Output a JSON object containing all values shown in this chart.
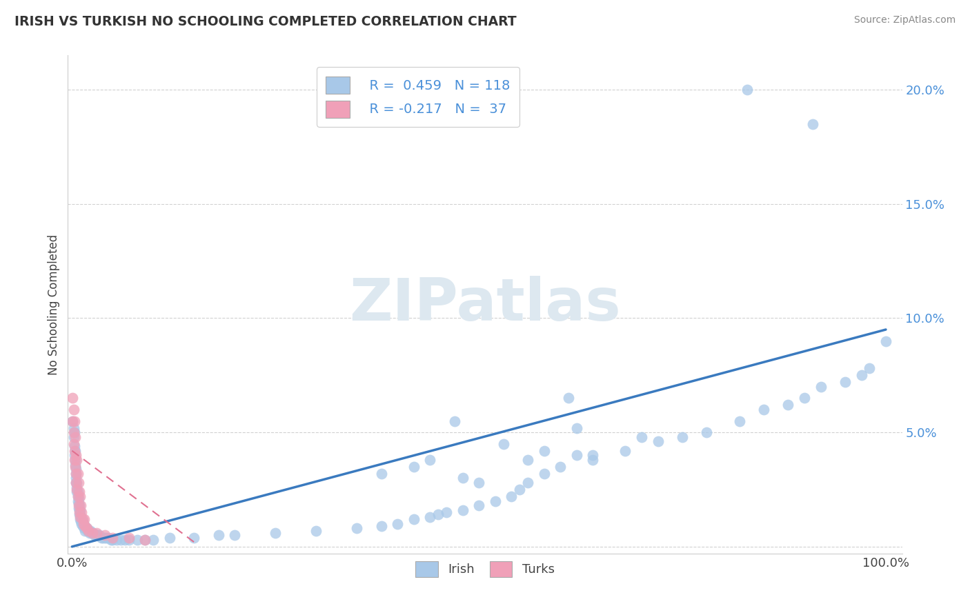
{
  "title": "IRISH VS TURKISH NO SCHOOLING COMPLETED CORRELATION CHART",
  "source": "Source: ZipAtlas.com",
  "ylabel": "No Schooling Completed",
  "legend_irish_R": "R =  0.459",
  "legend_irish_N": "N = 118",
  "legend_turks_R": "R = -0.217",
  "legend_turks_N": "N =  37",
  "irish_color": "#a8c8e8",
  "turks_color": "#f0a0b8",
  "irish_line_color": "#3a7abf",
  "turks_line_color": "#e07090",
  "background_color": "#ffffff",
  "grid_color": "#cccccc",
  "ytick_color": "#4a90d9",
  "title_color": "#333333",
  "source_color": "#888888",
  "watermark_color": "#dde8f0",
  "irish_scatter_x": [
    0.001,
    0.002,
    0.002,
    0.003,
    0.003,
    0.003,
    0.004,
    0.004,
    0.004,
    0.005,
    0.005,
    0.005,
    0.005,
    0.006,
    0.006,
    0.006,
    0.007,
    0.007,
    0.007,
    0.008,
    0.008,
    0.008,
    0.009,
    0.009,
    0.009,
    0.01,
    0.01,
    0.01,
    0.011,
    0.011,
    0.012,
    0.012,
    0.013,
    0.013,
    0.014,
    0.015,
    0.015,
    0.016,
    0.016,
    0.017,
    0.018,
    0.019,
    0.02,
    0.021,
    0.022,
    0.023,
    0.024,
    0.025,
    0.026,
    0.028,
    0.03,
    0.032,
    0.034,
    0.036,
    0.038,
    0.04,
    0.042,
    0.045,
    0.048,
    0.05,
    0.055,
    0.06,
    0.065,
    0.07,
    0.08,
    0.09,
    0.1,
    0.12,
    0.15,
    0.18,
    0.2,
    0.25,
    0.3,
    0.35,
    0.38,
    0.4,
    0.42,
    0.44,
    0.45,
    0.46,
    0.48,
    0.5,
    0.52,
    0.54,
    0.55,
    0.56,
    0.58,
    0.6,
    0.62,
    0.64,
    0.68,
    0.72,
    0.75,
    0.78,
    0.82,
    0.85,
    0.88,
    0.9,
    0.92,
    0.95,
    0.97,
    0.98,
    1.0,
    0.83,
    0.91,
    0.47,
    0.61,
    0.53,
    0.44,
    0.38,
    0.42,
    0.56,
    0.48,
    0.5,
    0.58,
    0.64,
    0.7,
    0.62
  ],
  "irish_scatter_y": [
    0.055,
    0.048,
    0.052,
    0.044,
    0.04,
    0.05,
    0.036,
    0.042,
    0.038,
    0.034,
    0.03,
    0.028,
    0.032,
    0.026,
    0.024,
    0.028,
    0.022,
    0.02,
    0.024,
    0.019,
    0.017,
    0.021,
    0.016,
    0.014,
    0.018,
    0.014,
    0.012,
    0.016,
    0.013,
    0.011,
    0.012,
    0.01,
    0.011,
    0.009,
    0.01,
    0.009,
    0.008,
    0.009,
    0.007,
    0.008,
    0.008,
    0.007,
    0.007,
    0.007,
    0.006,
    0.007,
    0.006,
    0.006,
    0.006,
    0.005,
    0.005,
    0.005,
    0.005,
    0.004,
    0.004,
    0.004,
    0.004,
    0.004,
    0.003,
    0.003,
    0.003,
    0.003,
    0.003,
    0.003,
    0.003,
    0.003,
    0.003,
    0.004,
    0.004,
    0.005,
    0.005,
    0.006,
    0.007,
    0.008,
    0.009,
    0.01,
    0.012,
    0.013,
    0.014,
    0.015,
    0.016,
    0.018,
    0.02,
    0.022,
    0.025,
    0.028,
    0.032,
    0.035,
    0.04,
    0.038,
    0.042,
    0.046,
    0.048,
    0.05,
    0.055,
    0.06,
    0.062,
    0.065,
    0.07,
    0.072,
    0.075,
    0.078,
    0.09,
    0.2,
    0.185,
    0.055,
    0.065,
    0.045,
    0.038,
    0.032,
    0.035,
    0.038,
    0.03,
    0.028,
    0.042,
    0.04,
    0.048,
    0.052
  ],
  "turks_scatter_x": [
    0.001,
    0.001,
    0.002,
    0.002,
    0.002,
    0.003,
    0.003,
    0.003,
    0.004,
    0.004,
    0.005,
    0.005,
    0.005,
    0.006,
    0.006,
    0.007,
    0.007,
    0.008,
    0.008,
    0.009,
    0.009,
    0.01,
    0.01,
    0.011,
    0.012,
    0.013,
    0.014,
    0.015,
    0.016,
    0.018,
    0.02,
    0.025,
    0.03,
    0.04,
    0.05,
    0.07,
    0.09
  ],
  "turks_scatter_y": [
    0.065,
    0.055,
    0.06,
    0.05,
    0.045,
    0.055,
    0.042,
    0.038,
    0.048,
    0.035,
    0.04,
    0.032,
    0.028,
    0.038,
    0.025,
    0.032,
    0.022,
    0.028,
    0.018,
    0.024,
    0.015,
    0.022,
    0.013,
    0.018,
    0.015,
    0.012,
    0.01,
    0.012,
    0.009,
    0.008,
    0.007,
    0.006,
    0.006,
    0.005,
    0.004,
    0.004,
    0.003
  ],
  "irish_line_x": [
    0.0,
    1.0
  ],
  "irish_line_y": [
    0.0,
    0.095
  ],
  "turks_line_x": [
    0.0,
    0.15
  ],
  "turks_line_y": [
    0.042,
    0.002
  ],
  "xlim": [
    -0.005,
    1.02
  ],
  "ylim": [
    -0.003,
    0.215
  ],
  "yticks": [
    0.0,
    0.05,
    0.1,
    0.15,
    0.2
  ],
  "ytick_labels": [
    "",
    "5.0%",
    "10.0%",
    "15.0%",
    "20.0%"
  ]
}
